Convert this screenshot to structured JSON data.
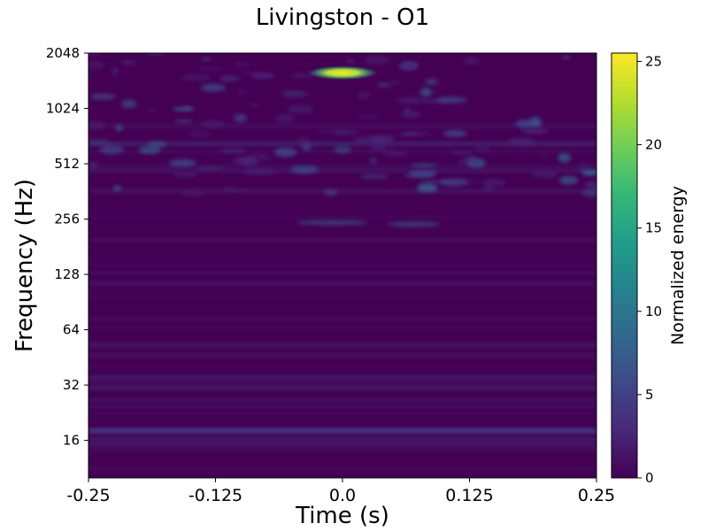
{
  "chart_data": {
    "type": "heatmap",
    "title": "Livingston - O1",
    "xlabel": "Time (s)",
    "ylabel": "Frequency (Hz)",
    "x_range": [
      -0.25,
      0.25
    ],
    "y_range": [
      10,
      2048
    ],
    "y_scale": "log2",
    "x_ticks": [
      "-0.25",
      "-0.125",
      "0.0",
      "0.125",
      "0.25"
    ],
    "x_tick_values": [
      -0.25,
      -0.125,
      0.0,
      0.125,
      0.25
    ],
    "y_ticks": [
      "16",
      "32",
      "64",
      "128",
      "256",
      "512",
      "1024",
      "2048"
    ],
    "y_tick_values": [
      16,
      32,
      64,
      128,
      256,
      512,
      1024,
      2048
    ],
    "colorbar": {
      "label": "Normalized energy",
      "range": [
        0,
        25.5
      ],
      "ticks": [
        "0",
        "5",
        "10",
        "15",
        "20",
        "25"
      ],
      "tick_values": [
        0,
        5,
        10,
        15,
        20,
        25
      ],
      "colormap": "viridis"
    },
    "peak": {
      "time": 0.0,
      "frequency": 1600,
      "energy": 25.5
    }
  },
  "colors": {
    "viridis": [
      "#440154",
      "#482878",
      "#3e4989",
      "#31688e",
      "#26828e",
      "#1f9e89",
      "#35b779",
      "#6ece58",
      "#b5de2b",
      "#fde725"
    ],
    "background": "#ffffff",
    "axis": "#000000"
  }
}
